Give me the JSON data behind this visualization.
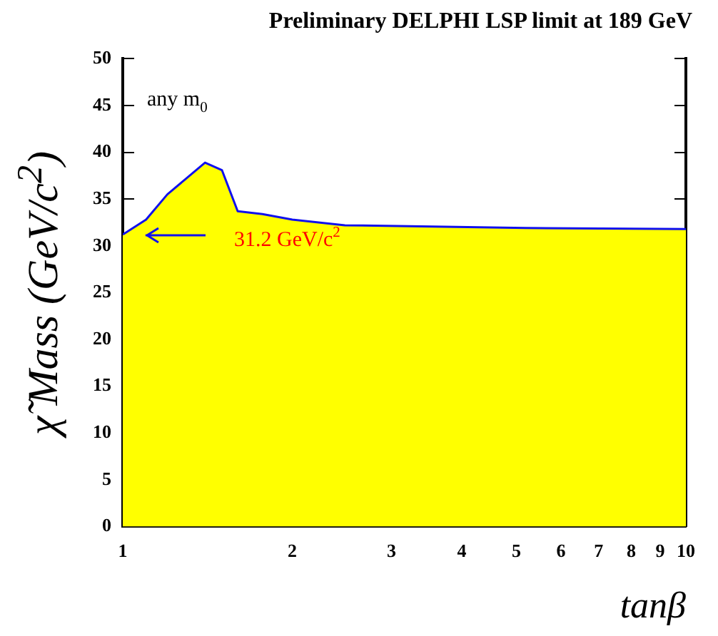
{
  "chart_data": {
    "type": "area",
    "title": "Preliminary DELPHI LSP limit at 189 GeV",
    "xlabel": "tanβ",
    "ylabel": "χ̃ Mass (GeV/c$^{2}$)",
    "x": [
      1,
      1.1,
      1.2,
      1.4,
      1.5,
      1.6,
      1.77,
      2,
      2.48,
      5.2,
      10
    ],
    "series": [
      {
        "color": "#ffff00",
        "values": [
          31.2,
          32.8,
          35.5,
          38.9,
          38.1,
          33.7,
          33.4,
          32.8,
          32.2,
          31.9,
          31.8
        ]
      },
      {
        "type": "line",
        "color": "#1010ee",
        "values": [
          31.2,
          32.8,
          35.5,
          38.9,
          38.1,
          33.7,
          33.4,
          32.8,
          32.2,
          31.9,
          31.8
        ]
      }
    ],
    "log": "x",
    "xlim": [
      1,
      10
    ],
    "xticks": [
      1,
      2,
      3,
      4,
      5,
      6,
      7,
      8,
      9,
      10
    ],
    "ylim": [
      0,
      50
    ],
    "yticks": [
      0,
      5,
      10,
      15,
      20,
      25,
      30,
      35,
      40,
      45,
      50
    ],
    "grid": false,
    "legend": false,
    "annotations": [
      "any m$_{0}$",
      "31.2 GeV/c$^{2}$"
    ]
  }
}
